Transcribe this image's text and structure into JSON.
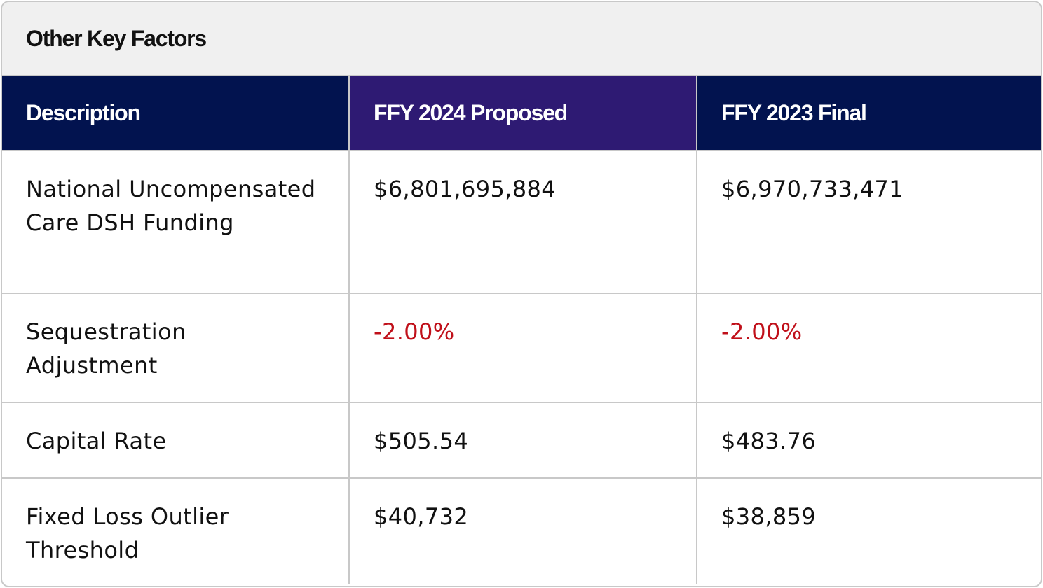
{
  "title": "Other Key Factors",
  "columns": [
    "Description",
    "FFY 2024 Proposed",
    "FFY 2023 Final"
  ],
  "rows": [
    {
      "description": "National Uncompensated Care DSH Funding",
      "ffy2024": "$6,801,695,884",
      "ffy2023": "$6,970,733,471"
    },
    {
      "description": "Sequestration Adjustment",
      "ffy2024": "-2.00%",
      "ffy2023": "-2.00%"
    },
    {
      "description": "Capital Rate",
      "ffy2024": "$505.54",
      "ffy2023": "$483.76"
    },
    {
      "description": "Fixed Loss Outlier Threshold",
      "ffy2024": "$40,732",
      "ffy2023": "$38,859"
    }
  ],
  "colors": {
    "header_bg": "#02134f",
    "header_accent_bg": "#2e1a73",
    "title_bg": "#f0f0f0",
    "negative_text": "#c0101a"
  }
}
